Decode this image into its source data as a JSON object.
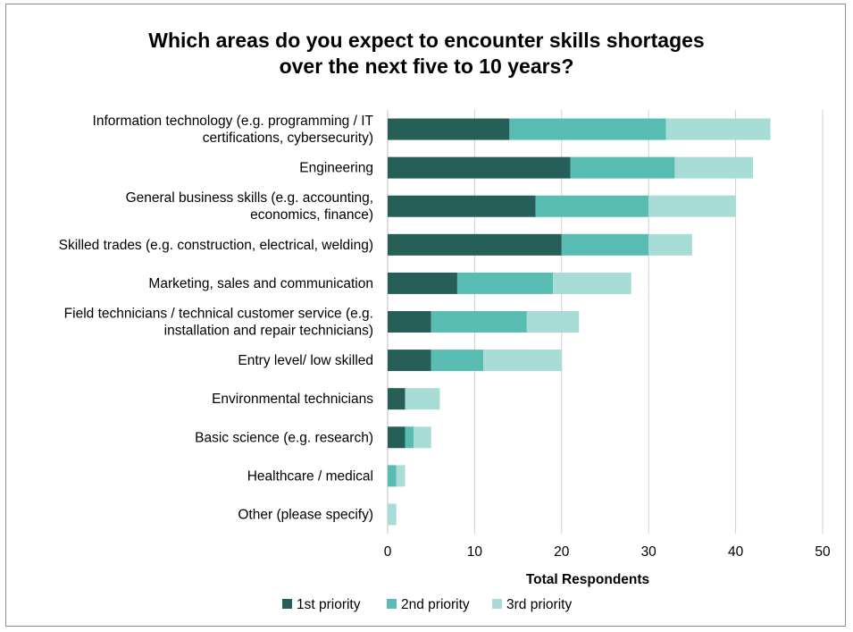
{
  "chart_data": {
    "type": "bar",
    "orientation": "horizontal",
    "stacked": true,
    "title_lines": [
      "Which areas do you expect to encounter skills shortages",
      "over the next five to 10 years?"
    ],
    "xlabel": "Total Respondents",
    "ylabel": "",
    "xlim": [
      0,
      50
    ],
    "xticks": [
      0,
      10,
      20,
      30,
      40,
      50
    ],
    "grid": "vertical",
    "legend_position": "bottom",
    "categories": [
      [
        "Information technology (e.g. programming / IT",
        "certifications, cybersecurity)"
      ],
      [
        "Engineering"
      ],
      [
        "General business skills (e.g. accounting,",
        "economics, finance)"
      ],
      [
        "Skilled trades (e.g. construction, electrical, welding)"
      ],
      [
        "Marketing, sales and communication"
      ],
      [
        "Field technicians / technical customer service (e.g.",
        "installation and repair technicians)"
      ],
      [
        "Entry level/ low skilled"
      ],
      [
        "Environmental technicians"
      ],
      [
        "Basic science (e.g. research)"
      ],
      [
        "Healthcare / medical"
      ],
      [
        "Other (please specify)"
      ]
    ],
    "series": [
      {
        "name": "1st priority",
        "color": "#265e58",
        "values": [
          14,
          21,
          17,
          20,
          8,
          5,
          5,
          2,
          2,
          0,
          0
        ]
      },
      {
        "name": "2nd priority",
        "color": "#58bcb3",
        "values": [
          18,
          12,
          13,
          10,
          11,
          11,
          6,
          0,
          1,
          1,
          0
        ]
      },
      {
        "name": "3rd priority",
        "color": "#a8dcd7",
        "values": [
          12,
          9,
          10,
          5,
          9,
          6,
          9,
          4,
          2,
          1,
          1
        ]
      }
    ]
  }
}
